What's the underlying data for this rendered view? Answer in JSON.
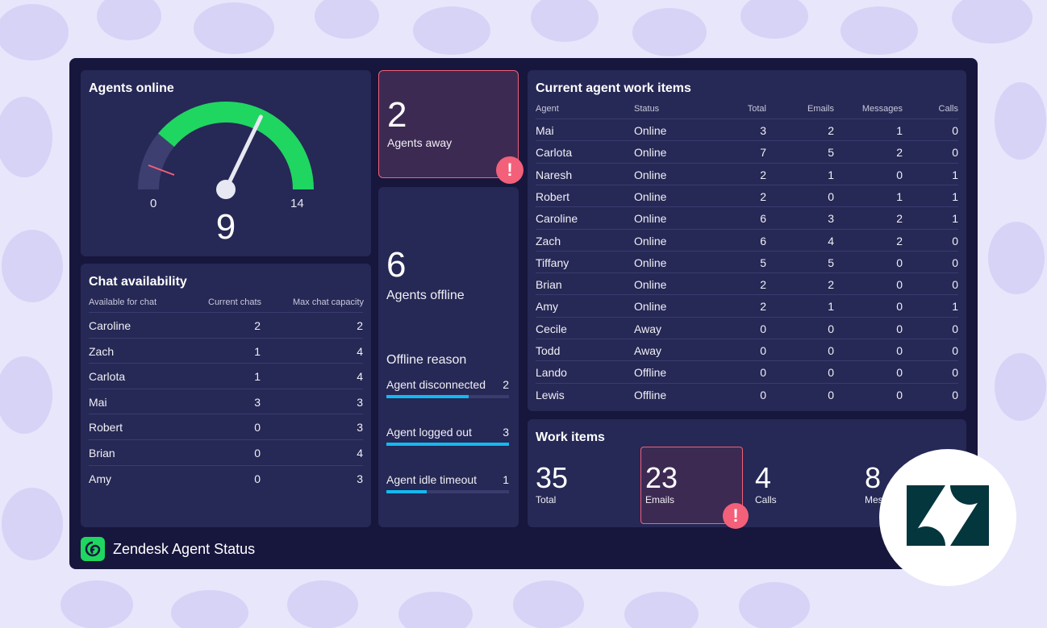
{
  "colors": {
    "background": "#e8e6fb",
    "dashboard": "#17163d",
    "panel": "#262855",
    "gauge_green": "#1fd660",
    "alert": "#f2607a",
    "bar": "#13b9f0",
    "zendesk_logo": "#03363d"
  },
  "agents_online": {
    "title": "Agents online",
    "min": "0",
    "max": "14",
    "value": "9",
    "value_fraction": 0.643
  },
  "chat_availability": {
    "title": "Chat availability",
    "columns": [
      "Available for chat",
      "Current chats",
      "Max chat capacity"
    ],
    "rows": [
      [
        "Caroline",
        "2",
        "2"
      ],
      [
        "Zach",
        "1",
        "4"
      ],
      [
        "Carlota",
        "1",
        "4"
      ],
      [
        "Mai",
        "3",
        "3"
      ],
      [
        "Robert",
        "0",
        "3"
      ],
      [
        "Brian",
        "0",
        "4"
      ],
      [
        "Amy",
        "0",
        "3"
      ]
    ]
  },
  "agents_away": {
    "value": "2",
    "label": "Agents away",
    "alert_icon": "!"
  },
  "agents_offline": {
    "value": "6",
    "label": "Agents offline",
    "reason_title": "Offline reason",
    "reasons": [
      {
        "label": "Agent disconnected",
        "count": "2",
        "fraction": 0.67
      },
      {
        "label": "Agent logged out",
        "count": "3",
        "fraction": 1.0
      },
      {
        "label": "Agent idle timeout",
        "count": "1",
        "fraction": 0.33
      }
    ]
  },
  "current_work_items": {
    "title": "Current agent work items",
    "columns": [
      "Agent",
      "Status",
      "Total",
      "Emails",
      "Messages",
      "Calls"
    ],
    "rows": [
      [
        "Mai",
        "Online",
        "3",
        "2",
        "1",
        "0"
      ],
      [
        "Carlota",
        "Online",
        "7",
        "5",
        "2",
        "0"
      ],
      [
        "Naresh",
        "Online",
        "2",
        "1",
        "0",
        "1"
      ],
      [
        "Robert",
        "Online",
        "2",
        "0",
        "1",
        "1"
      ],
      [
        "Caroline",
        "Online",
        "6",
        "3",
        "2",
        "1"
      ],
      [
        "Zach",
        "Online",
        "6",
        "4",
        "2",
        "0"
      ],
      [
        "Tiffany",
        "Online",
        "5",
        "5",
        "0",
        "0"
      ],
      [
        "Brian",
        "Online",
        "2",
        "2",
        "0",
        "0"
      ],
      [
        "Amy",
        "Online",
        "2",
        "1",
        "0",
        "1"
      ],
      [
        "Cecile",
        "Away",
        "0",
        "0",
        "0",
        "0"
      ],
      [
        "Todd",
        "Away",
        "0",
        "0",
        "0",
        "0"
      ],
      [
        "Lando",
        "Offline",
        "0",
        "0",
        "0",
        "0"
      ],
      [
        "Lewis",
        "Offline",
        "0",
        "0",
        "0",
        "0"
      ]
    ]
  },
  "work_items": {
    "title": "Work items",
    "total": {
      "value": "35",
      "label": "Total"
    },
    "emails": {
      "value": "23",
      "label": "Emails"
    },
    "calls": {
      "value": "4",
      "label": "Calls"
    },
    "messages": {
      "value": "8",
      "label": "Mes"
    },
    "alert_icon": "!"
  },
  "brand": {
    "name": "Zendesk Agent Status"
  }
}
